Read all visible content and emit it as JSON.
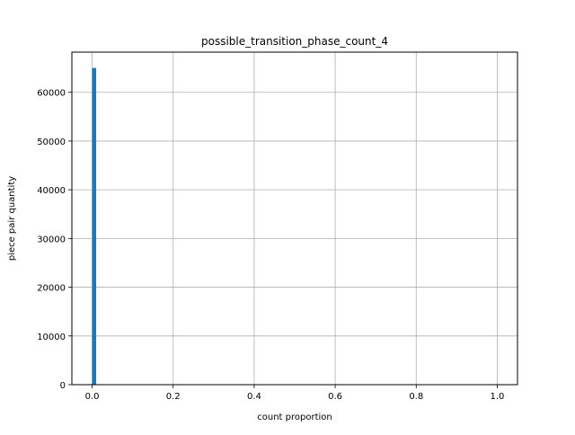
{
  "chart_data": {
    "type": "bar",
    "title": "possible_transition_phase_count_4",
    "xlabel": "count proportion",
    "ylabel": "piece pair quantity",
    "xlim": [
      -0.05,
      1.05
    ],
    "ylim": [
      0,
      68250
    ],
    "x_ticks": [
      0.0,
      0.2,
      0.4,
      0.6,
      0.8,
      1.0
    ],
    "x_tick_labels": [
      "0.0",
      "0.2",
      "0.4",
      "0.6",
      "0.8",
      "1.0"
    ],
    "y_ticks": [
      0,
      10000,
      20000,
      30000,
      40000,
      50000,
      60000
    ],
    "y_tick_labels": [
      "0",
      "10000",
      "20000",
      "30000",
      "40000",
      "50000",
      "60000"
    ],
    "grid": true,
    "bins": [
      {
        "x0": 0.0,
        "x1": 0.01,
        "value": 65000
      }
    ],
    "colors": {
      "bar": "#1f77b4",
      "grid": "#b0b0b0",
      "axis": "#000000"
    }
  }
}
